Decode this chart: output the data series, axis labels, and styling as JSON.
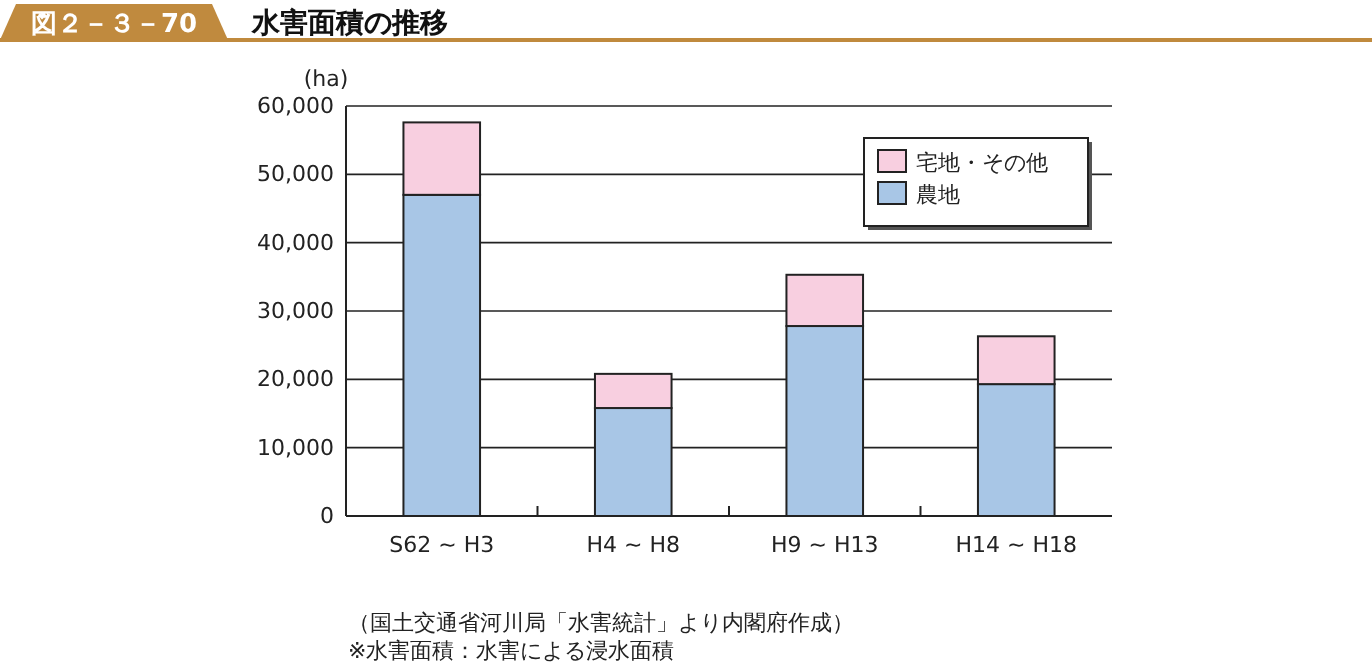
{
  "chart_data": {
    "type": "bar",
    "title": "水害面積の推移",
    "subtitle": "図２－３－70",
    "ylabel": "(ha)",
    "categories": [
      "S62 ~ H3",
      "H4 ~ H8",
      "H9 ~ H13",
      "H14 ~ H18"
    ],
    "stacked": true,
    "series": [
      {
        "name": "農地",
        "color": "#a8c6e6",
        "values": [
          47000,
          15800,
          27800,
          19300
        ]
      },
      {
        "name": "宅地・その他",
        "color": "#f8cfe0",
        "values": [
          10600,
          5000,
          7500,
          7000
        ]
      }
    ],
    "ylim": [
      0,
      60000
    ],
    "yticks": [
      0,
      {
        "value": 10000,
        "label": "10,000"
      },
      {
        "value": 20000,
        "label": "20,000"
      },
      {
        "value": 30000,
        "label": "30,000"
      },
      {
        "value": 40000,
        "label": "40,000"
      },
      {
        "value": 50000,
        "label": "50,000"
      },
      {
        "value": 60000,
        "label": "60,000"
      }
    ],
    "grid": "y",
    "legend": "top right",
    "annotations": [
      "（国土交通省河川局「水害統計」より内閣府作成）",
      "※水害面積：水害による浸水面積"
    ]
  }
}
